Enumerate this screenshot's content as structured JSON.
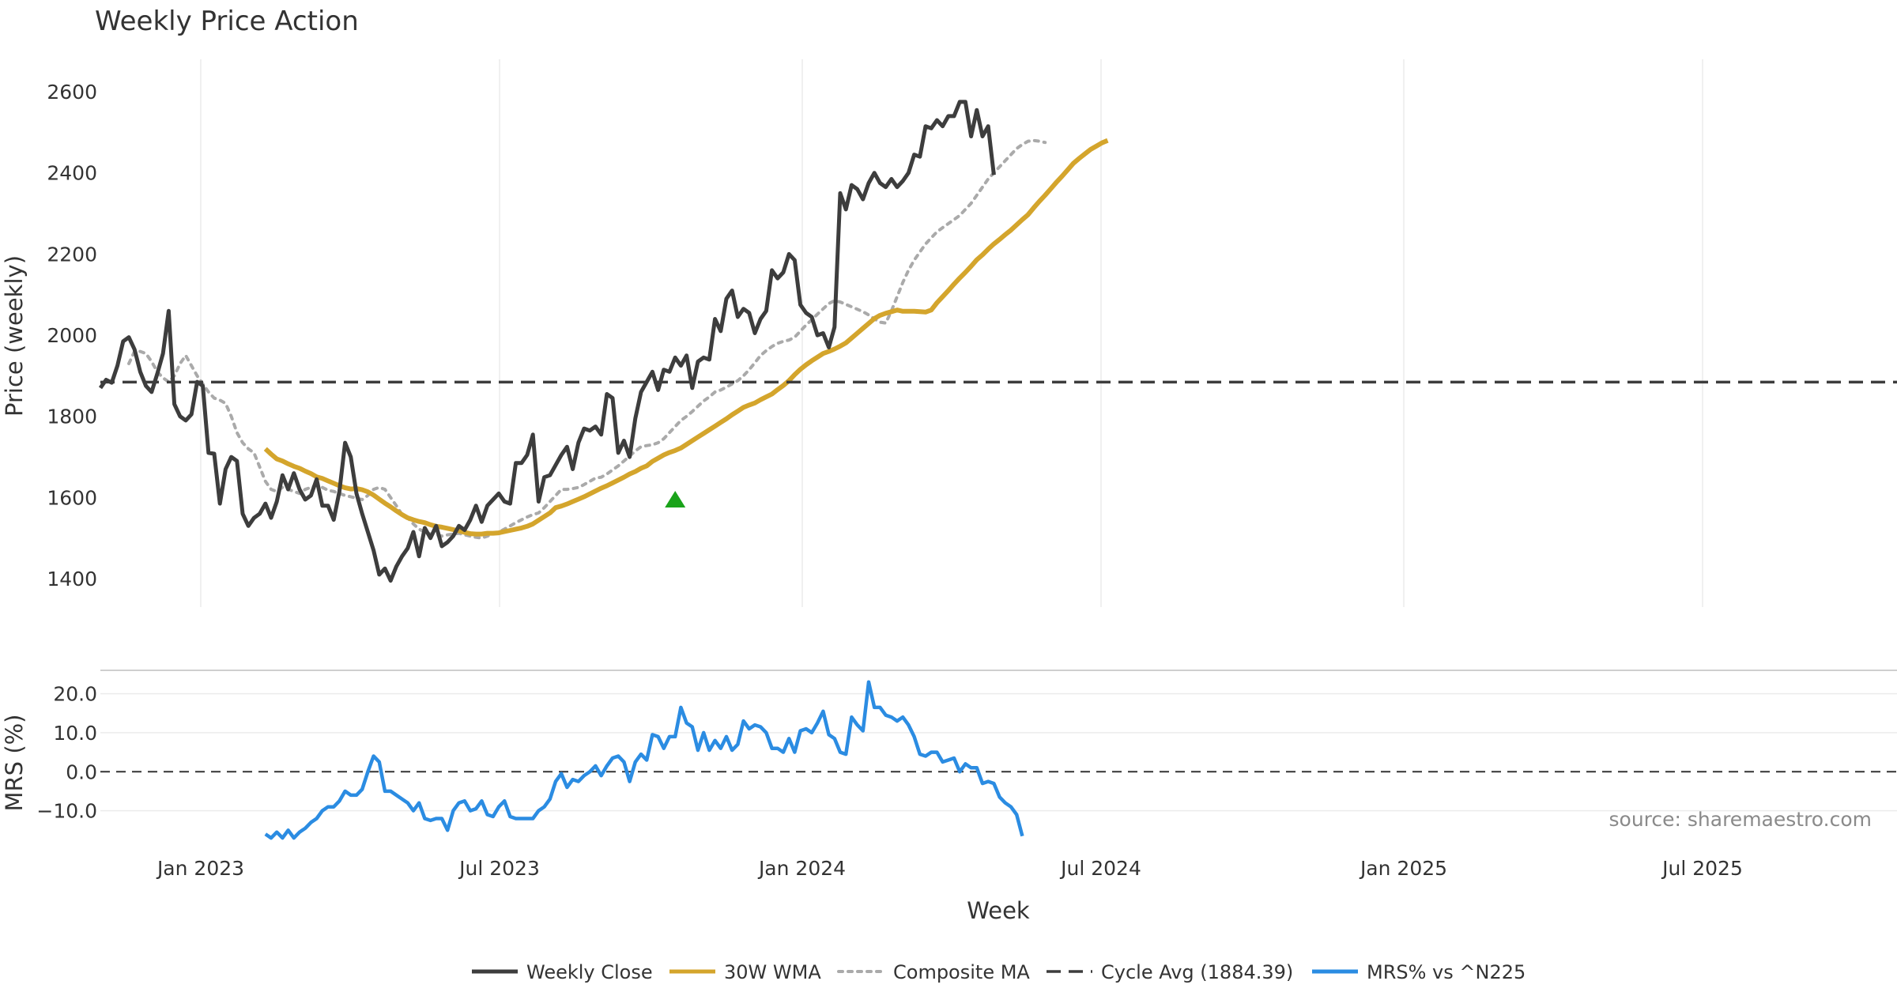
{
  "chart_data": {
    "type": "line",
    "title": "Weekly Price Action",
    "xlabel": "Week",
    "x_tick_labels": [
      "Jan 2023",
      "Jul 2023",
      "Jan 2024",
      "Jul 2024",
      "Jan 2025",
      "Jul 2025"
    ],
    "price_panel": {
      "ylabel": "Price (weekly)",
      "ylim": [
        1330,
        2680
      ],
      "y_ticks": [
        1400,
        1600,
        1800,
        2000,
        2200,
        2400,
        2600
      ],
      "cycle_avg": 1884.39,
      "signal_marker": {
        "week": 101,
        "value": 1595
      },
      "series": [
        {
          "name": "Weekly Close",
          "color": "#3d3d3d",
          "start_week": 0,
          "values": [
            1870,
            1890,
            1883,
            1925,
            1985,
            1995,
            1965,
            1910,
            1875,
            1860,
            1905,
            1955,
            2060,
            1830,
            1800,
            1790,
            1805,
            1885,
            1875,
            1710,
            1708,
            1585,
            1670,
            1700,
            1690,
            1560,
            1530,
            1550,
            1560,
            1585,
            1550,
            1590,
            1655,
            1620,
            1660,
            1620,
            1595,
            1605,
            1645,
            1580,
            1580,
            1545,
            1615,
            1735,
            1700,
            1610,
            1560,
            1515,
            1470,
            1410,
            1425,
            1395,
            1430,
            1455,
            1475,
            1515,
            1455,
            1525,
            1500,
            1530,
            1480,
            1490,
            1505,
            1530,
            1520,
            1545,
            1580,
            1540,
            1580,
            1595,
            1610,
            1590,
            1585,
            1685,
            1685,
            1705,
            1755,
            1590,
            1650,
            1655,
            1680,
            1705,
            1725,
            1670,
            1735,
            1770,
            1765,
            1775,
            1755,
            1855,
            1845,
            1710,
            1740,
            1700,
            1795,
            1860,
            1885,
            1910,
            1865,
            1915,
            1910,
            1945,
            1925,
            1950,
            1870,
            1935,
            1945,
            1940,
            2040,
            2010,
            2090,
            2110,
            2045,
            2065,
            2055,
            2005,
            2040,
            2060,
            2160,
            2140,
            2155,
            2200,
            2185,
            2075,
            2055,
            2045,
            2000,
            2005,
            1970,
            2020,
            2350,
            2310,
            2370,
            2360,
            2335,
            2375,
            2400,
            2375,
            2365,
            2385,
            2365,
            2380,
            2400,
            2445,
            2440,
            2515,
            2510,
            2530,
            2515,
            2540,
            2540,
            2575,
            2575,
            2490,
            2555,
            2490,
            2515,
            2395
          ]
        },
        {
          "name": "30W WMA",
          "color": "#d4a52c",
          "start_week": 29,
          "values": [
            1720,
            1707,
            1695,
            1690,
            1683,
            1677,
            1672,
            1665,
            1659,
            1651,
            1647,
            1641,
            1635,
            1629,
            1624,
            1621,
            1622,
            1619,
            1614,
            1606,
            1596,
            1586,
            1577,
            1567,
            1558,
            1550,
            1545,
            1541,
            1538,
            1533,
            1529,
            1527,
            1524,
            1521,
            1518,
            1514,
            1511,
            1510,
            1510,
            1512,
            1512,
            1513,
            1516,
            1519,
            1522,
            1525,
            1529,
            1535,
            1544,
            1553,
            1562,
            1575,
            1579,
            1584,
            1590,
            1596,
            1602,
            1609,
            1616,
            1623,
            1629,
            1636,
            1643,
            1650,
            1658,
            1664,
            1672,
            1678,
            1689,
            1697,
            1705,
            1711,
            1716,
            1722,
            1731,
            1740,
            1749,
            1758,
            1767,
            1776,
            1785,
            1794,
            1804,
            1813,
            1822,
            1828,
            1833,
            1841,
            1848,
            1855,
            1866,
            1876,
            1888,
            1903,
            1916,
            1927,
            1937,
            1946,
            1955,
            1960,
            1966,
            1973,
            1981,
            1993,
            2005,
            2017,
            2029,
            2041,
            2049,
            2054,
            2058,
            2062,
            2059,
            2059,
            2059,
            2058,
            2057,
            2062,
            2080,
            2095,
            2110,
            2126,
            2141,
            2155,
            2170,
            2186,
            2198,
            2212,
            2225,
            2236,
            2248,
            2259,
            2272,
            2285,
            2297,
            2314,
            2330,
            2345,
            2361,
            2377,
            2392,
            2408,
            2424,
            2436,
            2447,
            2458,
            2466,
            2474,
            2480
          ]
        },
        {
          "name": "Composite MA",
          "color": "#aaaaaa",
          "start_week": 5,
          "values": [
            1930,
            1960,
            1960,
            1955,
            1935,
            1910,
            1895,
            1885,
            1900,
            1930,
            1950,
            1925,
            1900,
            1880,
            1860,
            1845,
            1840,
            1832,
            1800,
            1760,
            1735,
            1720,
            1710,
            1675,
            1640,
            1620,
            1615,
            1625,
            1620,
            1615,
            1610,
            1620,
            1625,
            1630,
            1625,
            1618,
            1615,
            1610,
            1605,
            1602,
            1598,
            1595,
            1605,
            1620,
            1625,
            1620,
            1600,
            1580,
            1558,
            1550,
            1535,
            1522,
            1515,
            1510,
            1508,
            1505,
            1508,
            1510,
            1512,
            1508,
            1505,
            1502,
            1500,
            1505,
            1510,
            1515,
            1522,
            1530,
            1538,
            1545,
            1552,
            1558,
            1562,
            1575,
            1590,
            1605,
            1620,
            1620,
            1622,
            1625,
            1632,
            1640,
            1648,
            1650,
            1658,
            1668,
            1678,
            1690,
            1702,
            1715,
            1725,
            1728,
            1730,
            1735,
            1745,
            1760,
            1775,
            1790,
            1800,
            1812,
            1825,
            1838,
            1848,
            1860,
            1865,
            1872,
            1880,
            1888,
            1900,
            1915,
            1932,
            1950,
            1962,
            1972,
            1980,
            1985,
            1988,
            1995,
            2010,
            2025,
            2038,
            2052,
            2065,
            2078,
            2085,
            2082,
            2076,
            2070,
            2064,
            2058,
            2050,
            2040,
            2032,
            2030,
            2060,
            2095,
            2130,
            2160,
            2185,
            2205,
            2225,
            2240,
            2255,
            2265,
            2275,
            2285,
            2295,
            2310,
            2325,
            2345,
            2365,
            2385,
            2400,
            2415,
            2430,
            2445,
            2460,
            2470,
            2478,
            2480,
            2478,
            2475
          ]
        }
      ]
    },
    "mrs_panel": {
      "ylabel": "MRS (%)",
      "ylim": [
        -19,
        26
      ],
      "y_ticks": [
        -10.0,
        0.0,
        10.0,
        20.0
      ],
      "y_tick_labels": [
        "−10.0",
        "0.0",
        "10.0",
        "20.0"
      ],
      "zero_line": 0.0,
      "series": [
        {
          "name": "MRS% vs ^N225",
          "color": "#2b8ce2",
          "start_week": 29,
          "values": [
            -16,
            -17,
            -15.5,
            -17,
            -15,
            -17,
            -15.5,
            -14.5,
            -13,
            -12,
            -10,
            -9,
            -9,
            -7.5,
            -5,
            -6,
            -6,
            -4.5,
            0,
            4,
            2.5,
            -5,
            -5,
            -6,
            -7,
            -8,
            -10,
            -8,
            -12,
            -12.5,
            -12,
            -12,
            -15,
            -10,
            -8,
            -7.5,
            -10,
            -9.5,
            -7.5,
            -11,
            -11.5,
            -9,
            -7.5,
            -11.5,
            -12,
            -12,
            -12,
            -12,
            -10,
            -9,
            -7,
            -2.5,
            -0.5,
            -4,
            -2,
            -2.5,
            -1,
            0,
            1.5,
            -1,
            1.5,
            3.5,
            4,
            2.5,
            -2.5,
            2.5,
            4.5,
            3,
            9.5,
            9,
            6,
            9,
            9,
            16.5,
            12.5,
            11.5,
            5.5,
            10,
            5.5,
            8,
            6,
            9,
            5.5,
            7,
            13,
            11,
            12,
            11.5,
            10,
            6,
            6,
            5,
            8.5,
            5,
            10.5,
            11,
            10,
            12.5,
            15.5,
            9.5,
            8.5,
            5,
            4.5,
            14,
            12,
            10.5,
            23,
            16.5,
            16.5,
            14.5,
            14,
            13,
            14,
            12,
            9,
            4.5,
            4,
            5,
            5,
            2.5,
            3,
            3.5,
            0,
            2,
            1,
            1,
            -3,
            -2.5,
            -3,
            -6.5,
            -8,
            -9,
            -11,
            -16.5
          ]
        }
      ]
    },
    "legend": [
      {
        "label": "Weekly Close",
        "color": "#3d3d3d",
        "style": "solid"
      },
      {
        "label": "30W WMA",
        "color": "#d4a52c",
        "style": "solid"
      },
      {
        "label": "Composite MA",
        "color": "#aaaaaa",
        "style": "dotted"
      },
      {
        "label": "Cycle Avg (1884.39)",
        "color": "#3d3d3d",
        "style": "dashed"
      },
      {
        "label": "MRS% vs ^N225",
        "color": "#2b8ce2",
        "style": "solid"
      }
    ],
    "source_text": "source: sharemaestro.com"
  }
}
